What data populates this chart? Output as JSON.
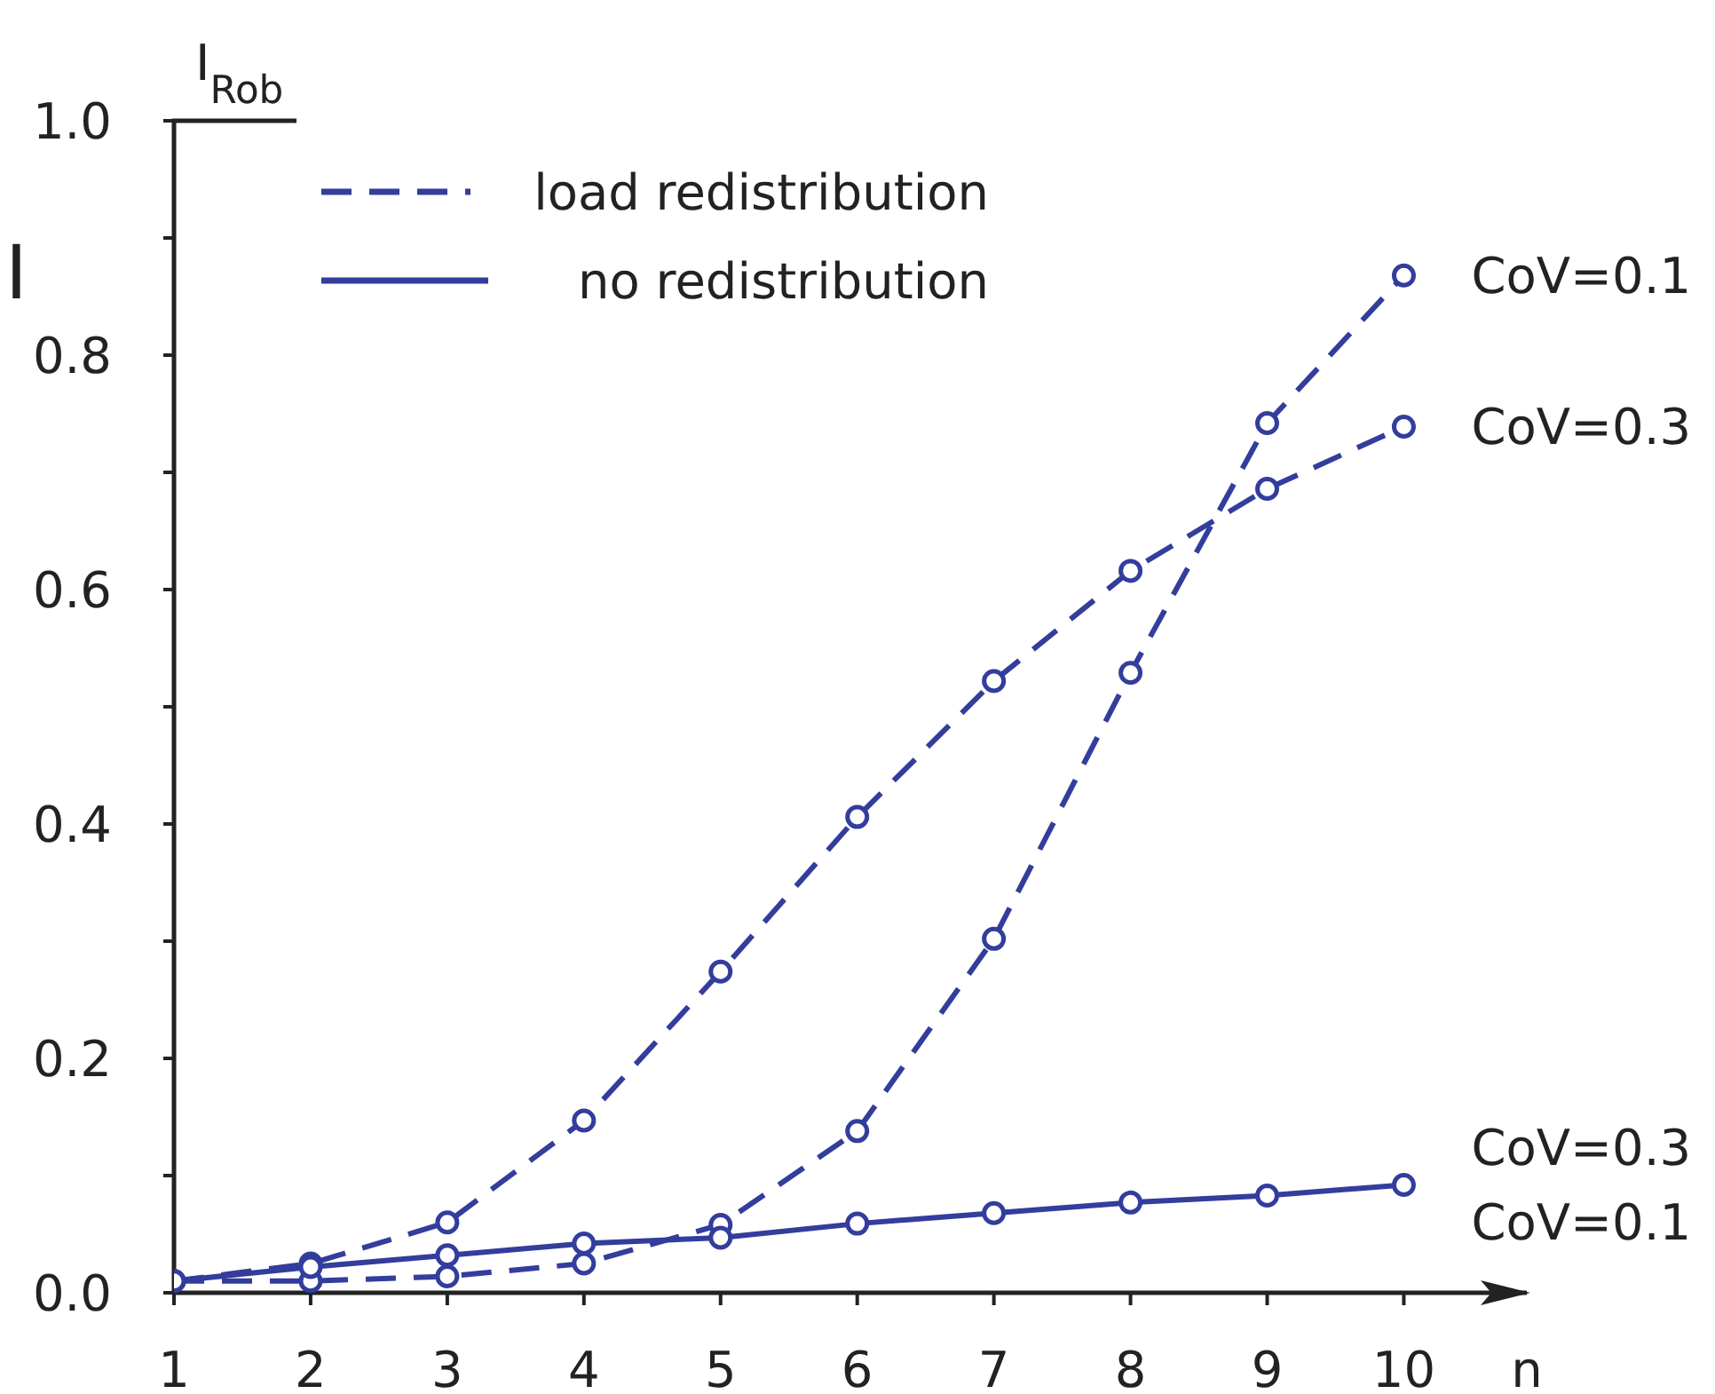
{
  "chart_data": {
    "type": "line",
    "ylabel": "I$_{Rob}$",
    "xlabel": "n",
    "x": [
      1,
      2,
      3,
      4,
      5,
      6,
      7,
      8,
      9,
      10
    ],
    "xlim": [
      1,
      10.9
    ],
    "xticks": [
      1,
      2,
      3,
      4,
      5,
      6,
      7,
      8,
      9,
      10
    ],
    "ylim": [
      0,
      1
    ],
    "yticks": [
      {
        "value": 0,
        "label": "0.0"
      },
      {
        "value": 0.1,
        "label": null
      },
      0.2,
      {
        "value": 0.3,
        "label": null
      },
      0.4,
      {
        "value": 0.5,
        "label": null
      },
      0.6,
      {
        "value": 0.7,
        "label": null
      },
      0.8,
      {
        "value": 0.9,
        "label": null
      },
      {
        "value": 1,
        "label": "1.0"
      }
    ],
    "series": [
      {
        "name": "CoV=0.1",
        "color": "#333d9c",
        "line_style": "dashed",
        "values": [
          0.01,
          0.01,
          0.014,
          0.025,
          0.058,
          0.138,
          0.302,
          0.529,
          0.742,
          0.868
        ]
      },
      {
        "name": "CoV=0.3",
        "color": "#333d9c",
        "line_style": "dashed",
        "values": [
          0.01,
          0.025,
          0.06,
          0.147,
          0.274,
          0.406,
          0.522,
          0.616,
          0.686,
          0.739
        ]
      },
      {
        "name": "CoV=0.3",
        "color": "#333d9c",
        "line_style": "solid",
        "values": [
          0.01,
          0.022,
          0.032,
          0.042,
          0.047,
          0.059,
          0.068,
          0.077,
          0.083,
          0.092
        ]
      }
    ],
    "marker": "circle",
    "annotations": [
      "load redistribution",
      "no redistribution",
      "I",
      {
        "text": "CoV=0.1",
        "x": 10,
        "y": 0.092
      }
    ]
  }
}
